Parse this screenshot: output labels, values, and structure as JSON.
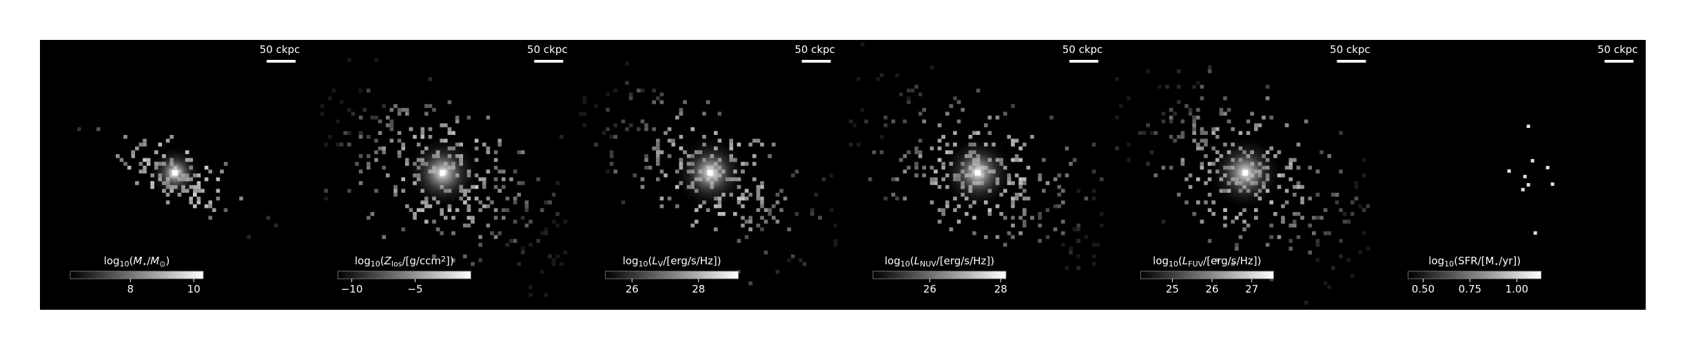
{
  "chart_data": [
    {
      "type": "image",
      "scale_bar": "50 ckpc",
      "colorbar_label": [
        {
          "text": "log"
        },
        {
          "text": "10",
          "sub": true
        },
        {
          "text": "("
        },
        {
          "text": "M",
          "italic": true
        },
        {
          "text": "⋆",
          "sub": true
        },
        {
          "text": "/"
        },
        {
          "text": "M",
          "italic": true
        },
        {
          "text": "⊙",
          "sub": true
        },
        {
          "text": ")"
        }
      ],
      "colorbar_lim": [
        6.1,
        10.3
      ],
      "colorbar_ticks": [
        8,
        10
      ]
    },
    {
      "type": "image",
      "scale_bar": "50 ckpc",
      "colorbar_label": [
        {
          "text": "log"
        },
        {
          "text": "10",
          "sub": true
        },
        {
          "text": "("
        },
        {
          "text": "Z",
          "italic": true
        },
        {
          "text": "los",
          "sub": true
        },
        {
          "text": "/[g/ccm"
        },
        {
          "text": "2",
          "sup": true
        },
        {
          "text": "])"
        }
      ],
      "colorbar_lim": [
        -11.1,
        -0.6
      ],
      "colorbar_ticks": [
        {
          "value": -10,
          "label": "−10"
        },
        {
          "value": -5,
          "label": "−5"
        }
      ]
    },
    {
      "type": "image",
      "scale_bar": "50 ckpc",
      "colorbar_label": [
        {
          "text": "log"
        },
        {
          "text": "10",
          "sub": true
        },
        {
          "text": "("
        },
        {
          "text": "L",
          "italic": true
        },
        {
          "text": "V",
          "sub": true
        },
        {
          "text": "/[erg/s/Hz])"
        }
      ],
      "colorbar_lim": [
        25.2,
        29.2
      ],
      "colorbar_ticks": [
        26,
        28
      ]
    },
    {
      "type": "image",
      "scale_bar": "50 ckpc",
      "colorbar_label": [
        {
          "text": "log"
        },
        {
          "text": "10",
          "sub": true
        },
        {
          "text": "("
        },
        {
          "text": "L",
          "italic": true
        },
        {
          "text": "NUV",
          "sub": true
        },
        {
          "text": "/[erg/s/Hz])"
        }
      ],
      "colorbar_lim": [
        24.4,
        28.15
      ],
      "colorbar_ticks": [
        26,
        28
      ]
    },
    {
      "type": "image",
      "scale_bar": "50 ckpc",
      "colorbar_label": [
        {
          "text": "log"
        },
        {
          "text": "10",
          "sub": true
        },
        {
          "text": "("
        },
        {
          "text": "L",
          "italic": true
        },
        {
          "text": "FUV",
          "sub": true
        },
        {
          "text": "/[erg/s/Hz])"
        }
      ],
      "colorbar_lim": [
        24.2,
        27.55
      ],
      "colorbar_ticks": [
        25,
        26,
        27
      ]
    },
    {
      "type": "image",
      "scale_bar": "50 ckpc",
      "colorbar_label": [
        {
          "text": "log"
        },
        {
          "text": "10",
          "sub": true
        },
        {
          "text": "(SFR/[M"
        },
        {
          "text": "⋆",
          "sub": true
        },
        {
          "text": "/yr])"
        }
      ],
      "colorbar_lim": [
        0.42,
        1.13
      ],
      "colorbar_ticks": [
        {
          "value": 0.5,
          "label": "0.50"
        },
        0.75,
        {
          "value": 1,
          "label": "1.00"
        }
      ]
    }
  ]
}
